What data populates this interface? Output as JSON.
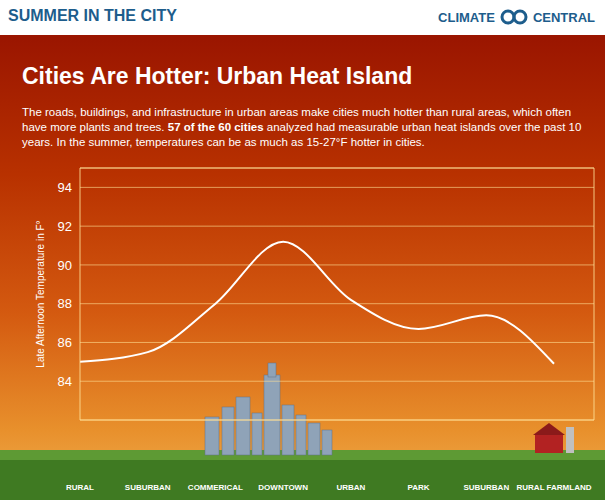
{
  "header": "SUMMER IN THE CITY",
  "brand": "CLIMATE CENTRAL",
  "chart_data": {
    "type": "line",
    "title": "Cities Are Hotter: Urban Heat Island",
    "description": [
      "The roads, buildings, and infrastructure in urban areas make cities much hotter than rural areas, which often have more plants and trees. ",
      "57 of the 60 cities",
      " analyzed had measurable urban heat islands over the past 10 years. In the summer, temperatures can be as much as 15-27°F hotter in cities."
    ],
    "y_label": "Late Afternoon Temperature in F°",
    "categories": [
      "RURAL",
      "SUBURBAN",
      "COMMERICAL",
      "DOWNTOWN",
      "URBAN",
      "PARK",
      "SUBURBAN",
      "RURAL FARMLAND"
    ],
    "values": [
      85.0,
      85.5,
      88.0,
      91.2,
      88.2,
      86.7,
      87.4,
      84.9
    ],
    "color": "#ffffff",
    "ylim": [
      82,
      95
    ],
    "yticks": [
      84,
      86,
      88,
      90,
      92,
      94
    ],
    "grid": true
  }
}
